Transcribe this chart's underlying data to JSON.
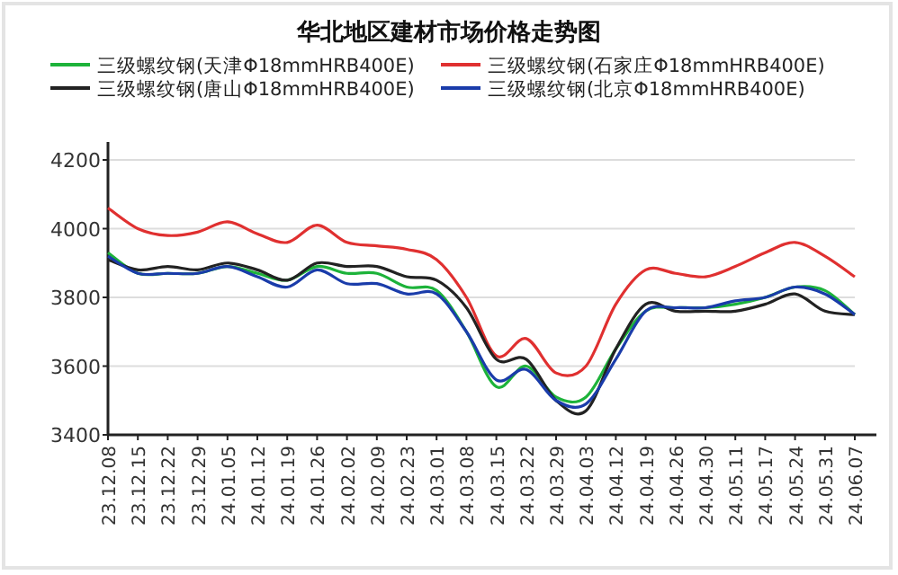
{
  "chart_data": {
    "type": "line",
    "title": "华北地区建材市场价格走势图",
    "categories": [
      "23.12.08",
      "23.12.15",
      "23.12.22",
      "23.12.29",
      "24.01.05",
      "24.01.12",
      "24.01.19",
      "24.01.26",
      "24.02.02",
      "24.02.09",
      "24.02.23",
      "24.03.01",
      "24.03.08",
      "24.03.15",
      "24.03.22",
      "24.03.29",
      "24.04.03",
      "24.04.12",
      "24.04.19",
      "24.04.26",
      "24.04.30",
      "24.05.11",
      "24.05.17",
      "24.05.24",
      "24.05.31",
      "24.06.07"
    ],
    "series": [
      {
        "name": "三级螺纹钢(天津Φ18mmHRB400E)",
        "color": "#1db33a",
        "values": [
          3930,
          3870,
          3870,
          3870,
          3890,
          3870,
          3850,
          3890,
          3870,
          3870,
          3830,
          3820,
          3700,
          3540,
          3600,
          3510,
          3510,
          3650,
          3760,
          3770,
          3770,
          3780,
          3800,
          3830,
          3820,
          3750
        ]
      },
      {
        "name": "三级螺纹钢(石家庄Φ18mmHRB400E)",
        "color": "#e03030",
        "values": [
          4060,
          4000,
          3980,
          3990,
          4020,
          3985,
          3960,
          4010,
          3960,
          3950,
          3940,
          3910,
          3800,
          3630,
          3680,
          3580,
          3600,
          3780,
          3880,
          3870,
          3860,
          3890,
          3930,
          3960,
          3920,
          3860
        ]
      },
      {
        "name": "三级螺纹钢(唐山Φ18mmHRB400E)",
        "color": "#222222",
        "values": [
          3910,
          3880,
          3890,
          3880,
          3900,
          3880,
          3850,
          3900,
          3890,
          3890,
          3860,
          3850,
          3770,
          3620,
          3620,
          3500,
          3470,
          3650,
          3780,
          3760,
          3760,
          3760,
          3780,
          3810,
          3760,
          3750
        ]
      },
      {
        "name": "三级螺纹钢(北京Φ18mmHRB400E)",
        "color": "#1a3caa",
        "values": [
          3920,
          3870,
          3870,
          3870,
          3890,
          3860,
          3830,
          3880,
          3840,
          3840,
          3810,
          3810,
          3700,
          3560,
          3590,
          3500,
          3490,
          3620,
          3760,
          3770,
          3770,
          3790,
          3800,
          3830,
          3810,
          3750
        ]
      }
    ],
    "ylim": [
      3400,
      4200
    ],
    "yticks": [
      3400,
      3600,
      3800,
      4000,
      4200
    ],
    "grid": "y",
    "legend": "top"
  }
}
